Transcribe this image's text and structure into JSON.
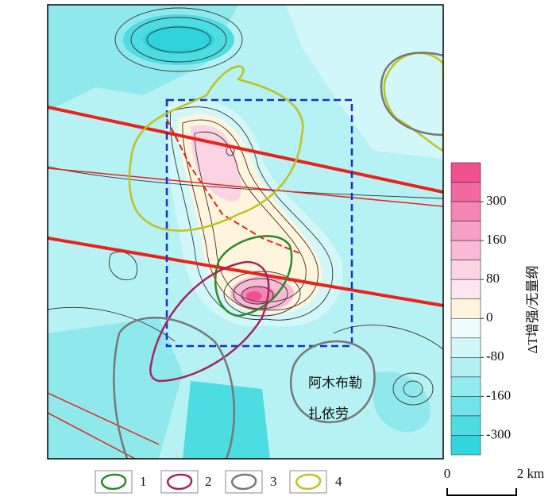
{
  "map": {
    "places": [
      "阿木布勒",
      "扎依劳"
    ],
    "colorbar": {
      "title": "ΔT增强/无量纲",
      "ticks": [
        300,
        160,
        80,
        0,
        -80,
        -160,
        -300
      ],
      "colors": [
        "#f0508f",
        "#f36aa2",
        "#f585b4",
        "#f7a0c5",
        "#f9bad5",
        "#fbd3e3",
        "#fde7ef",
        "#fff4dc",
        "#eefcfc",
        "#d2f7f8",
        "#b3f1f3",
        "#92ebee",
        "#70e4e9",
        "#4edce3",
        "#33d6df"
      ]
    },
    "legend": [
      "1",
      "2",
      "3",
      "4"
    ],
    "scale": {
      "start": "0",
      "end": "2 km"
    }
  }
}
